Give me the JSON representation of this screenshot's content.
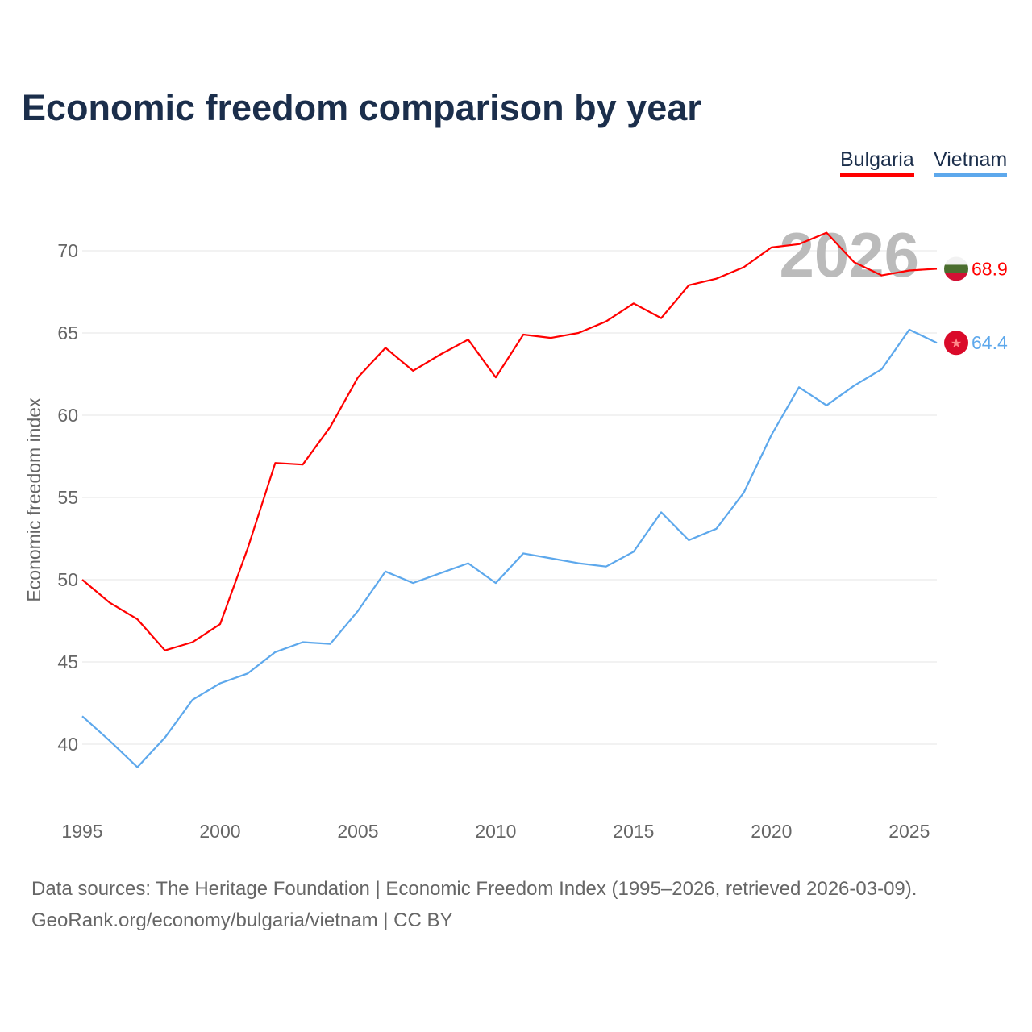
{
  "title": "Economic freedom comparison by year",
  "footer": {
    "line1": "Data sources: The Heritage Foundation | Economic Freedom Index (1995–2026, retrieved 2026-03-09).",
    "line2": "GeoRank.org/economy/bulgaria/vietnam | CC BY"
  },
  "chart_data": {
    "type": "line",
    "title": "Economic freedom comparison by year",
    "xlabel": "",
    "ylabel": "Economic freedom index",
    "xlim": [
      1995,
      2026
    ],
    "ylim": [
      36,
      72
    ],
    "yticks": [
      40,
      45,
      50,
      55,
      60,
      65,
      70
    ],
    "xticks": [
      1995,
      2000,
      2005,
      2010,
      2015,
      2020,
      2025
    ],
    "grid": true,
    "legend_position": "top-right",
    "year_watermark": "2026",
    "x": [
      1995,
      1996,
      1997,
      1998,
      1999,
      2000,
      2001,
      2002,
      2003,
      2004,
      2005,
      2006,
      2007,
      2008,
      2009,
      2010,
      2011,
      2012,
      2013,
      2014,
      2015,
      2016,
      2017,
      2018,
      2019,
      2020,
      2021,
      2022,
      2023,
      2024,
      2025,
      2026
    ],
    "series": [
      {
        "name": "Bulgaria",
        "color": "#ff0000",
        "end_label": "68.9",
        "flag": "bulgaria-flag",
        "values": [
          50.0,
          48.6,
          47.6,
          45.7,
          46.2,
          47.3,
          51.9,
          57.1,
          57.0,
          59.3,
          62.3,
          64.1,
          62.7,
          63.7,
          64.6,
          62.3,
          64.9,
          64.7,
          65.0,
          65.7,
          66.8,
          65.9,
          67.9,
          68.3,
          69.0,
          70.2,
          70.4,
          71.1,
          69.3,
          68.5,
          68.8,
          68.9
        ]
      },
      {
        "name": "Vietnam",
        "color": "#5da8ec",
        "end_label": "64.4",
        "flag": "vietnam-flag",
        "values": [
          41.7,
          40.2,
          38.6,
          40.4,
          42.7,
          43.7,
          44.3,
          45.6,
          46.2,
          46.1,
          48.1,
          50.5,
          49.8,
          50.4,
          51.0,
          49.8,
          51.6,
          51.3,
          51.0,
          50.8,
          51.7,
          54.1,
          52.4,
          53.1,
          55.3,
          58.8,
          61.7,
          60.6,
          61.8,
          62.8,
          65.2,
          64.4
        ]
      }
    ]
  }
}
